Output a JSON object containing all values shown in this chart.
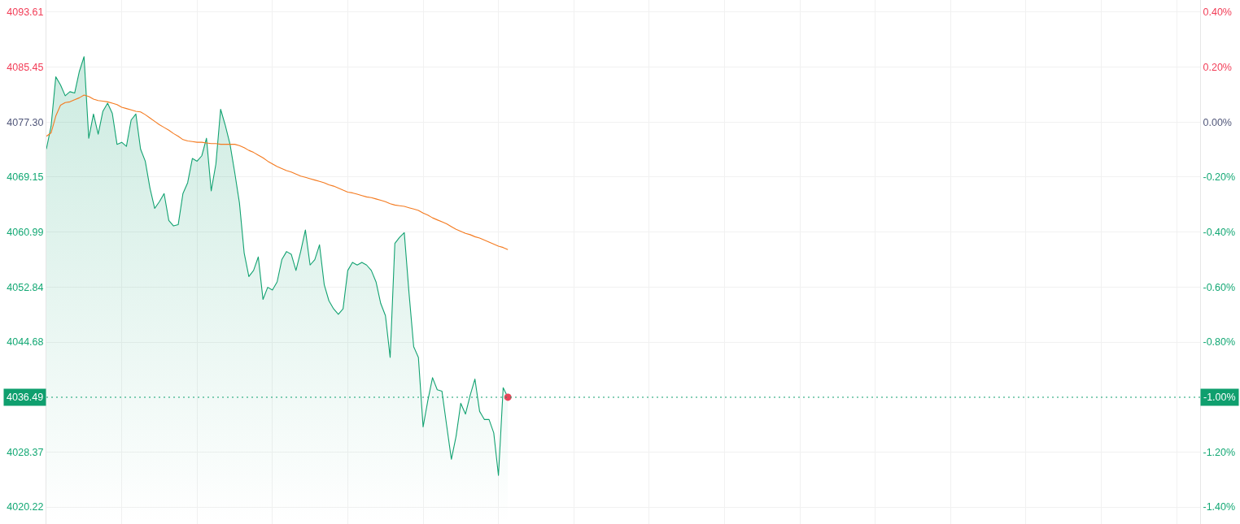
{
  "chart_data": {
    "type": "area",
    "categories": [
      null,
      null,
      null,
      null,
      null,
      null,
      null,
      null,
      null,
      null,
      null,
      null,
      null,
      null,
      null,
      null,
      null,
      null,
      null,
      null,
      null,
      null,
      null,
      null,
      null,
      null,
      null,
      null,
      null,
      null,
      null,
      null,
      null,
      null,
      null,
      null,
      null,
      null,
      null,
      null,
      null,
      null,
      null,
      null,
      null,
      null,
      null,
      null,
      null,
      null,
      null,
      null,
      null,
      null,
      null,
      null,
      null,
      null,
      null,
      null,
      null,
      null,
      null,
      null,
      null,
      null,
      null,
      null,
      null,
      null,
      null,
      null,
      null,
      null,
      null,
      null,
      null,
      null,
      null,
      null,
      null,
      null,
      null,
      null,
      null,
      null,
      null,
      null,
      null,
      null,
      null,
      null,
      null,
      null,
      null,
      null,
      null,
      null,
      null,
      null,
      null,
      null,
      null,
      null,
      null,
      null,
      null,
      null,
      null,
      null,
      null,
      null,
      null,
      null,
      null,
      null,
      null,
      null,
      null,
      null,
      null,
      null,
      null,
      null,
      null,
      null,
      null,
      null,
      null,
      null,
      null,
      null,
      null,
      null,
      null,
      null,
      null,
      null,
      null,
      null,
      null,
      null,
      null,
      null,
      null,
      null,
      null,
      null,
      null,
      null,
      null,
      null,
      null,
      null,
      null,
      null,
      null,
      null,
      null,
      null,
      null,
      null,
      null,
      null,
      null,
      null,
      null,
      null,
      null,
      null,
      null,
      null,
      null,
      null,
      null,
      null,
      null,
      null,
      null,
      null,
      null,
      null,
      null,
      null,
      null,
      null,
      null,
      null,
      null,
      null,
      null,
      null,
      null,
      null,
      null,
      null,
      null,
      null,
      null,
      null,
      null,
      null,
      null,
      null,
      null,
      null,
      null,
      null,
      null,
      null,
      null,
      null,
      null,
      null,
      null,
      null,
      null,
      null,
      null,
      null,
      null,
      null,
      null,
      null,
      null,
      null,
      null,
      null,
      null,
      null,
      null,
      null,
      null,
      null,
      null,
      null,
      null,
      null,
      null,
      null,
      null,
      null,
      null,
      null,
      null,
      null
    ],
    "series": [
      {
        "color": "#12a271",
        "values": [
          4073.3,
          4076.7,
          4084.0,
          4082.8,
          4081.2,
          4081.8,
          4081.6,
          4084.8,
          4087.0,
          4074.9,
          4078.5,
          4075.5,
          4078.9,
          4080.1,
          4078.6,
          4074.0,
          4074.3,
          4073.7,
          4077.6,
          4078.5,
          4073.3,
          4071.5,
          4067.5,
          4064.5,
          4065.5,
          4066.7,
          4062.7,
          4061.9,
          4062.1,
          4066.7,
          4068.3,
          4071.9,
          4071.5,
          4072.3,
          4074.9,
          4067.1,
          4071.1,
          4079.2,
          4076.8,
          4074.0,
          4069.8,
          4065.3,
          4057.9,
          4054.4,
          4055.3,
          4057.3,
          4051.0,
          4052.8,
          4052.4,
          4053.6,
          4056.9,
          4058.1,
          4057.7,
          4055.3,
          4058.1,
          4061.3,
          4056.1,
          4056.9,
          4059.1,
          4053.2,
          4050.8,
          4049.6,
          4048.8,
          4049.6,
          4055.3,
          4056.5,
          4056.1,
          4056.5,
          4056.1,
          4055.3,
          4053.6,
          4050.4,
          4048.6,
          4042.4,
          4059.3,
          4060.2,
          4060.9,
          4052.0,
          4044.0,
          4042.4,
          4032.1,
          4036.0,
          4039.4,
          4037.6,
          4037.4,
          4032.3,
          4027.3,
          4030.7,
          4035.6,
          4034.0,
          4036.8,
          4039.2,
          4034.4,
          4033.2,
          4033.2,
          4031.2,
          4024.9,
          4037.9,
          4036.5,
          null,
          null,
          null,
          null,
          null,
          null,
          null,
          null,
          null,
          null,
          null,
          null,
          null,
          null,
          null,
          null,
          null,
          null,
          null,
          null,
          null,
          null,
          null,
          null,
          null,
          null,
          null,
          null,
          null,
          null,
          null,
          null,
          null,
          null,
          null,
          null,
          null,
          null,
          null,
          null,
          null,
          null,
          null,
          null,
          null,
          null,
          null,
          null,
          null,
          null,
          null,
          null,
          null,
          null,
          null,
          null,
          null,
          null,
          null,
          null,
          null,
          null,
          null,
          null,
          null,
          null,
          null,
          null,
          null,
          null,
          null,
          null,
          null,
          null,
          null,
          null,
          null,
          null,
          null,
          null,
          null,
          null,
          null,
          null,
          null,
          null,
          null,
          null,
          null,
          null,
          null,
          null,
          null,
          null,
          null,
          null,
          null,
          null,
          null,
          null,
          null,
          null,
          null,
          null,
          null,
          null,
          null,
          null,
          null,
          null,
          null,
          null,
          null,
          null,
          null,
          null,
          null,
          null,
          null,
          null,
          null,
          null,
          null,
          null,
          null,
          null,
          null,
          null,
          null,
          null,
          null,
          null,
          null,
          null,
          null,
          null,
          null,
          null,
          null,
          null,
          null,
          null,
          null,
          null,
          null,
          null,
          null
        ]
      },
      {
        "type": "line",
        "color": "#f47a1f",
        "values": [
          4075.2,
          4075.7,
          4078.2,
          4079.8,
          4080.2,
          4080.3,
          4080.6,
          4080.9,
          4081.3,
          4081.1,
          4080.7,
          4080.5,
          4080.4,
          4080.3,
          4080.1,
          4079.9,
          4079.5,
          4079.3,
          4079.1,
          4078.9,
          4078.8,
          4078.4,
          4077.9,
          4077.4,
          4076.9,
          4076.5,
          4076.1,
          4075.6,
          4075.2,
          4074.7,
          4074.5,
          4074.4,
          4074.3,
          4074.3,
          4074.2,
          4074.1,
          4074.1,
          4074.0,
          4074.0,
          4074.0,
          4074.0,
          4073.8,
          4073.5,
          4073.1,
          4072.8,
          4072.4,
          4072.0,
          4071.5,
          4071.1,
          4070.7,
          4070.4,
          4070.1,
          4069.9,
          4069.6,
          4069.3,
          4069.1,
          4068.9,
          4068.7,
          4068.5,
          4068.3,
          4068.0,
          4067.8,
          4067.5,
          4067.2,
          4066.9,
          4066.8,
          4066.6,
          4066.4,
          4066.2,
          4066.1,
          4065.9,
          4065.7,
          4065.5,
          4065.2,
          4065.0,
          4064.9,
          4064.8,
          4064.6,
          4064.4,
          4064.2,
          4063.8,
          4063.5,
          4063.1,
          4062.8,
          4062.5,
          4062.2,
          4061.8,
          4061.4,
          4061.1,
          4060.8,
          4060.6,
          4060.3,
          4060.1,
          4059.8,
          4059.5,
          4059.2,
          4058.9,
          4058.7,
          4058.4,
          null,
          null,
          null,
          null,
          null,
          null,
          null,
          null,
          null,
          null,
          null,
          null,
          null,
          null,
          null,
          null,
          null,
          null,
          null,
          null,
          null,
          null,
          null,
          null,
          null,
          null,
          null,
          null,
          null,
          null,
          null,
          null,
          null,
          null,
          null,
          null,
          null,
          null,
          null,
          null,
          null,
          null,
          null,
          null,
          null,
          null,
          null,
          null,
          null,
          null,
          null,
          null,
          null,
          null,
          null,
          null,
          null,
          null,
          null,
          null,
          null,
          null,
          null,
          null,
          null,
          null,
          null,
          null,
          null,
          null,
          null,
          null,
          null,
          null,
          null,
          null,
          null,
          null,
          null,
          null,
          null,
          null,
          null,
          null,
          null,
          null,
          null,
          null,
          null,
          null,
          null,
          null,
          null,
          null,
          null,
          null,
          null,
          null,
          null,
          null,
          null,
          null,
          null,
          null,
          null,
          null,
          null,
          null,
          null,
          null,
          null,
          null,
          null,
          null,
          null,
          null,
          null,
          null,
          null,
          null,
          null,
          null,
          null,
          null,
          null,
          null,
          null,
          null,
          null,
          null,
          null,
          null,
          null,
          null,
          null,
          null,
          null,
          null,
          null,
          null,
          null,
          null,
          null,
          null,
          null,
          null,
          null
        ]
      },
      {
        "type": "scatter",
        "marker": "circle",
        "color": "#e84459",
        "values": [
          null,
          null,
          null,
          null,
          null,
          null,
          null,
          null,
          null,
          null,
          null,
          null,
          null,
          null,
          null,
          null,
          null,
          null,
          null,
          null,
          null,
          null,
          null,
          null,
          null,
          null,
          null,
          null,
          null,
          null,
          null,
          null,
          null,
          null,
          null,
          null,
          null,
          null,
          null,
          null,
          null,
          null,
          null,
          null,
          null,
          null,
          null,
          null,
          null,
          null,
          null,
          null,
          null,
          null,
          null,
          null,
          null,
          null,
          null,
          null,
          null,
          null,
          null,
          null,
          null,
          null,
          null,
          null,
          null,
          null,
          null,
          null,
          null,
          null,
          null,
          null,
          null,
          null,
          null,
          null,
          null,
          null,
          null,
          null,
          null,
          null,
          null,
          null,
          null,
          null,
          null,
          null,
          null,
          null,
          null,
          null,
          null,
          null,
          4036.5,
          null,
          null,
          null,
          null,
          null,
          null,
          null,
          null,
          null,
          null,
          null,
          null,
          null,
          null,
          null,
          null,
          null,
          null,
          null,
          null,
          null,
          null,
          null,
          null,
          null,
          null,
          null,
          null,
          null,
          null,
          null,
          null,
          null,
          null,
          null,
          null,
          null,
          null,
          null,
          null,
          null,
          null,
          null,
          null,
          null,
          null,
          null,
          null,
          null,
          null,
          null,
          null,
          null,
          null,
          null,
          null,
          null,
          null,
          null,
          null,
          null,
          null,
          null,
          null,
          null,
          null,
          null,
          null,
          null,
          null,
          null,
          null,
          null,
          null,
          null,
          null,
          null,
          null,
          null,
          null,
          null,
          null,
          null,
          null,
          null,
          null,
          null,
          null,
          null,
          null,
          null,
          null,
          null,
          null,
          null,
          null,
          null,
          null,
          null,
          null,
          null,
          null,
          null,
          null,
          null,
          null,
          null,
          null,
          null,
          null,
          null,
          null,
          null,
          null,
          null,
          null,
          null,
          null,
          null,
          null,
          null,
          null,
          null,
          null,
          null,
          null,
          null,
          null,
          null,
          null,
          null,
          null,
          null,
          null,
          null,
          null,
          null,
          null,
          null,
          null,
          null,
          null,
          null,
          null,
          null,
          null,
          null
        ]
      }
    ],
    "ylim": [
      4017.7,
      4095.4
    ],
    "yticks": [
      4020.22,
      4028.37,
      4044.68,
      4052.84,
      4060.99,
      4069.15,
      {
        "value": 4077.3,
        "label": "4077.30"
      },
      4085.45,
      4093.61
    ],
    "y2lim": [
      -1.462,
      0.444
    ],
    "y2ticks": [
      {
        "value": -1.4,
        "label": "-1.40%"
      },
      {
        "value": -1.2,
        "label": "-1.20%"
      },
      {
        "value": -1.0,
        "label": "-1.00%"
      },
      {
        "value": -0.8,
        "label": "-0.80%"
      },
      {
        "value": -0.6,
        "label": "-0.60%"
      },
      {
        "value": -0.4,
        "label": "-0.40%"
      },
      {
        "value": -0.2,
        "label": "-0.20%"
      },
      {
        "value": 0.0,
        "label": "0.00%"
      },
      {
        "value": 0.2,
        "label": "0.20%"
      },
      {
        "value": 0.4,
        "label": "0.40%"
      }
    ],
    "ref_lines": [
      {
        "axis": "y",
        "value": 4036.49,
        "label": "4036.49",
        "color": "#0f9f6e",
        "line_style": "dotted"
      }
    ],
    "grid": true
  }
}
